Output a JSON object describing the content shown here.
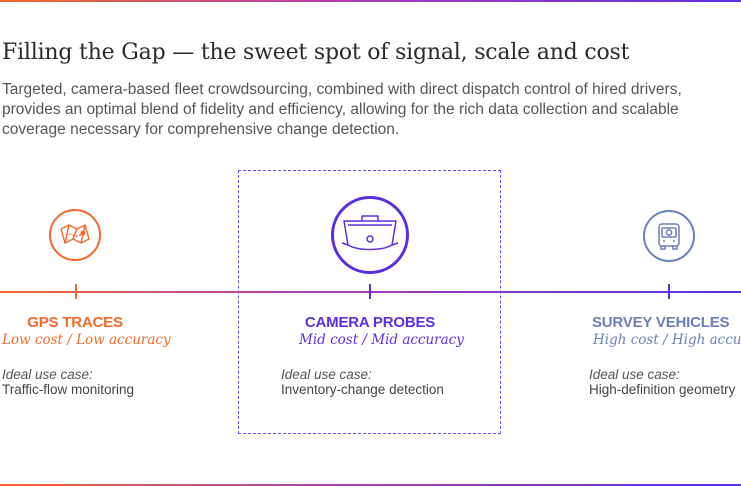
{
  "title": "Filling the Gap — the sweet spot of signal, scale and cost",
  "intro": "Targeted, camera-based fleet crowdsourcing, combined with direct dispatch control of hired drivers, provides an optimal blend of fidelity and efficiency, allowing for the rich data collection and scalable coverage necessary for comprehensive change detection.",
  "categories": [
    {
      "name": "GPS TRACES",
      "subtitle": "Low cost / Low accuracy",
      "use_label": "Ideal use case:",
      "use_value": "Traffic-flow monitoring",
      "color": "#f26a2a",
      "icon": "map-icon"
    },
    {
      "name": "CAMERA PROBES",
      "subtitle": "Mid cost / Mid accuracy",
      "use_label": "Ideal use case:",
      "use_value": "Inventory-change detection",
      "color": "#5b2ee0",
      "icon": "dashcam-icon"
    },
    {
      "name": "SURVEY VEHICLES",
      "subtitle": "High cost / High accuracy",
      "use_label": "Ideal use case:",
      "use_value": "High-definition geometry",
      "color": "#6b7fb8",
      "icon": "survey-vehicle-icon"
    }
  ]
}
